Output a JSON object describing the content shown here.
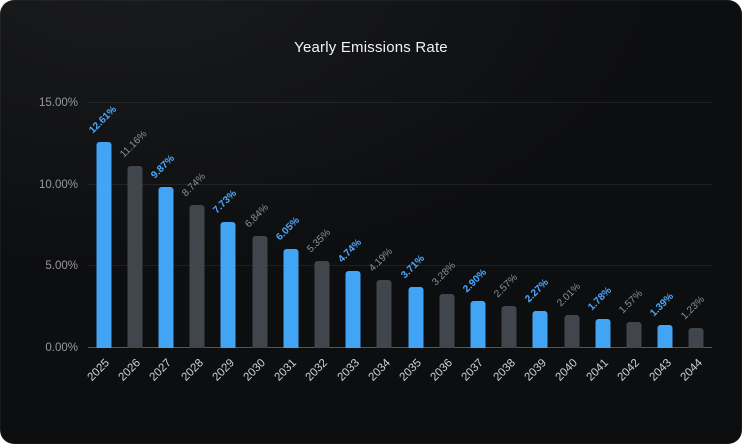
{
  "page": {
    "background": "#ffffff"
  },
  "card": {
    "background": "#0d0e10"
  },
  "chart_data": {
    "type": "bar",
    "title": "Yearly Emissions Rate",
    "categories": [
      "2025",
      "2026",
      "2027",
      "2028",
      "2029",
      "2030",
      "2031",
      "2032",
      "2033",
      "2034",
      "2035",
      "2036",
      "2037",
      "2038",
      "2039",
      "2040",
      "2041",
      "2042",
      "2043",
      "2044"
    ],
    "values": [
      12.61,
      11.16,
      9.87,
      8.74,
      7.73,
      6.84,
      6.05,
      5.35,
      4.74,
      4.19,
      3.71,
      3.28,
      2.9,
      2.57,
      2.27,
      2.01,
      1.78,
      1.57,
      1.39,
      1.23
    ],
    "value_labels": [
      "12.61%",
      "11.16%",
      "9.87%",
      "8.74%",
      "7.73%",
      "6.84%",
      "6.05%",
      "5.35%",
      "4.74%",
      "4.19%",
      "3.71%",
      "3.28%",
      "2.90%",
      "2.57%",
      "2.27%",
      "2.01%",
      "1.78%",
      "1.57%",
      "1.39%",
      "1.23%"
    ],
    "highlighted": [
      true,
      false,
      true,
      false,
      true,
      false,
      true,
      false,
      true,
      false,
      true,
      false,
      true,
      false,
      true,
      false,
      true,
      false,
      true,
      false
    ],
    "xlabel": "",
    "ylabel": "",
    "ylim": [
      0,
      15
    ],
    "y_ticks": [
      {
        "value": 0,
        "label": "0.00%"
      },
      {
        "value": 5,
        "label": "5.00%"
      },
      {
        "value": 10,
        "label": "10.00%"
      },
      {
        "value": 15,
        "label": "15.00%"
      }
    ],
    "grid": true,
    "legend": false,
    "colors": {
      "bar_highlight": "#41a4f5",
      "bar_base": "#41454c",
      "label_highlight": "#4fa9ff",
      "label_base": "#8d9096",
      "axis_text": "#cfd2d6",
      "ytick_text": "#97999e",
      "gridline": "rgba(255,255,255,0.08)",
      "axis_line": "rgba(255,255,255,0.30)"
    }
  }
}
